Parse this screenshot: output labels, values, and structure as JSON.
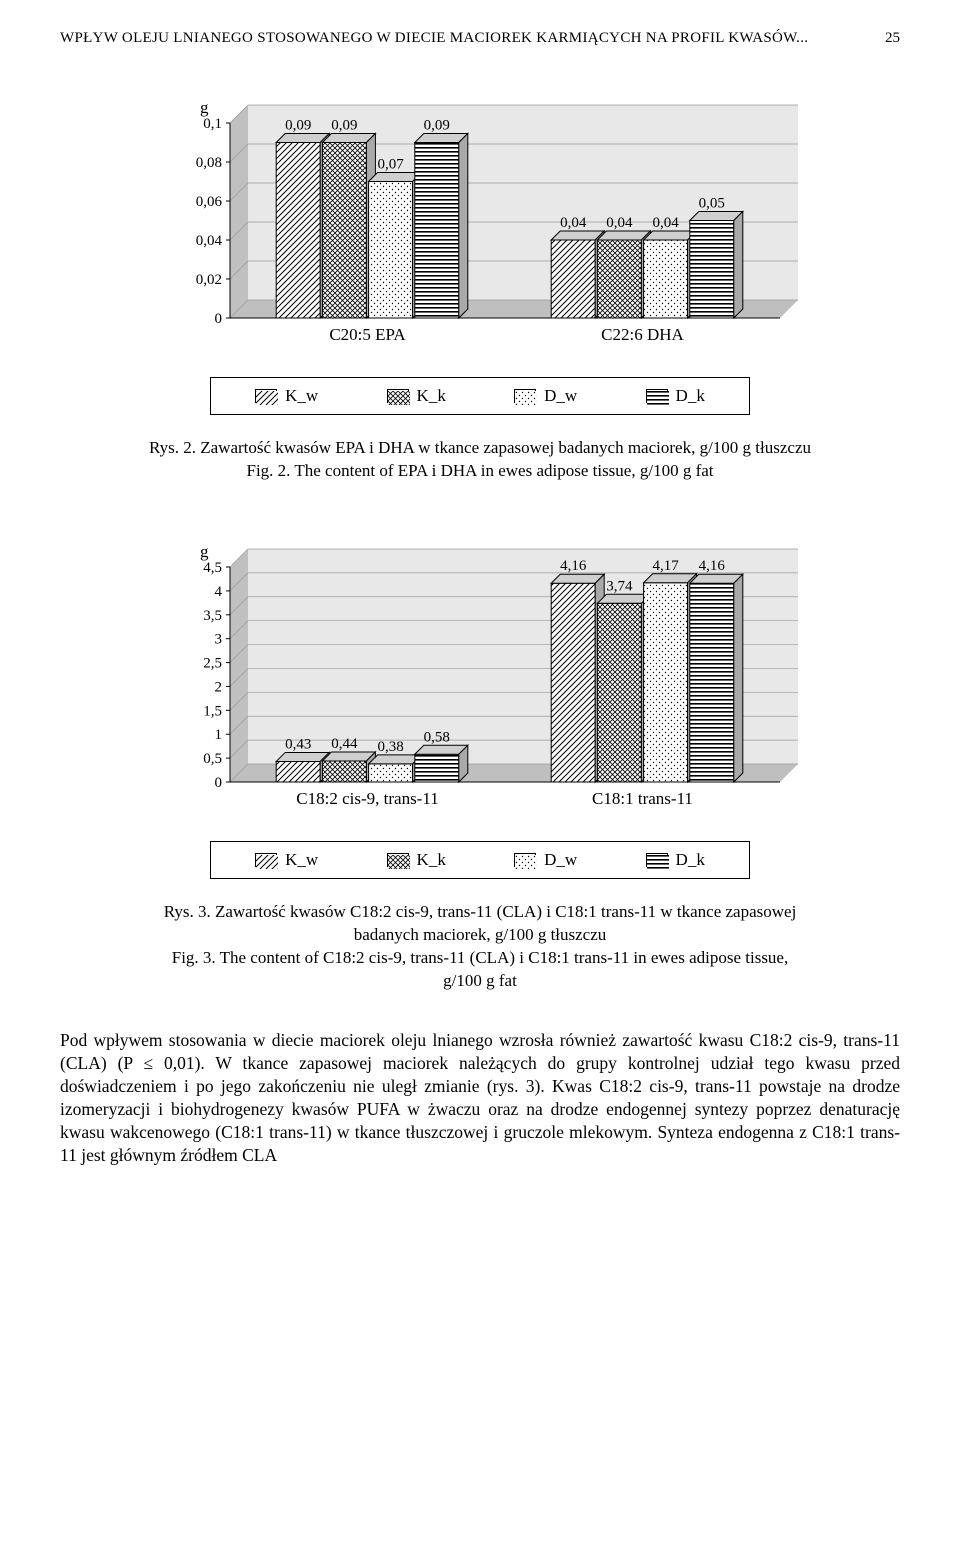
{
  "header": {
    "title_text": "WPŁYW OLEJU LNIANEGO STOSOWANEGO W DIECIE MACIOREK KARMIĄCYCH NA PROFIL KWASÓW...",
    "page_number": "25"
  },
  "patterns": {
    "K_w": "diag-left",
    "K_k": "crosshatch",
    "D_w": "dots",
    "D_k": "hstripe"
  },
  "palette": {
    "bar_stroke": "#000000",
    "top_fill": "#cfcfcf",
    "floor_light": "#dcdcdc",
    "floor_dark": "#bfbfbf",
    "wall_light": "#e8e8e8",
    "wall_dark": "#c0c0c0",
    "axis": "#000000",
    "text": "#000000",
    "bg": "#ffffff"
  },
  "chart1": {
    "y_label_letter": "g",
    "y_ticks": [
      "0,1",
      "0,08",
      "0,06",
      "0,04",
      "0,02",
      "0"
    ],
    "y_max": 0.1,
    "groups": [
      {
        "label": "C20:5 EPA",
        "bars": [
          {
            "series": "K_w",
            "value": 0.09,
            "label": "0,09"
          },
          {
            "series": "K_k",
            "value": 0.09,
            "label": "0,09"
          },
          {
            "series": "D_w",
            "value": 0.07,
            "label": "0,07"
          },
          {
            "series": "D_k",
            "value": 0.09,
            "label": "0,09"
          }
        ]
      },
      {
        "label": "C22:6 DHA",
        "bars": [
          {
            "series": "K_w",
            "value": 0.04,
            "label": "0,04"
          },
          {
            "series": "K_k",
            "value": 0.04,
            "label": "0,04"
          },
          {
            "series": "D_w",
            "value": 0.04,
            "label": "0,04"
          },
          {
            "series": "D_k",
            "value": 0.05,
            "label": "0,05"
          }
        ]
      }
    ]
  },
  "chart2": {
    "y_label_letter": "g",
    "y_ticks": [
      "4,5",
      "4",
      "3,5",
      "3",
      "2,5",
      "2",
      "1,5",
      "1",
      "0,5",
      "0"
    ],
    "y_max": 4.5,
    "groups": [
      {
        "label": "C18:2 cis-9, trans-11",
        "bars": [
          {
            "series": "K_w",
            "value": 0.43,
            "label": "0,43"
          },
          {
            "series": "K_k",
            "value": 0.44,
            "label": "0,44"
          },
          {
            "series": "D_w",
            "value": 0.38,
            "label": "0,38"
          },
          {
            "series": "D_k",
            "value": 0.58,
            "label": "0,58"
          }
        ]
      },
      {
        "label": "C18:1 trans-11",
        "bars": [
          {
            "series": "K_w",
            "value": 4.16,
            "label": "4,16"
          },
          {
            "series": "K_k",
            "value": 3.74,
            "label": "3,74"
          },
          {
            "series": "D_w",
            "value": 4.17,
            "label": "4,17"
          },
          {
            "series": "D_k",
            "value": 4.16,
            "label": "4,16"
          }
        ]
      }
    ]
  },
  "legend": [
    {
      "series": "K_w",
      "label": "K_w"
    },
    {
      "series": "K_k",
      "label": "K_k"
    },
    {
      "series": "D_w",
      "label": "D_w"
    },
    {
      "series": "D_k",
      "label": "D_k"
    }
  ],
  "captions": {
    "fig2_rys": "Rys. 2. Zawartość kwasów EPA i DHA w tkance zapasowej badanych maciorek,  g/100 g tłuszczu",
    "fig2_fig": "Fig. 2. The content of EPA i DHA in ewes adipose tissue, g/100 g fat",
    "fig3_rys_l1": "Rys. 3. Zawartość kwasów C18:2 cis-9, trans-11 (CLA) i C18:1 trans-11 w tkance zapasowej",
    "fig3_rys_l2": "badanych maciorek, g/100 g tłuszczu",
    "fig3_fig_l1": "Fig. 3. The content of C18:2 cis-9, trans-11 (CLA) i C18:1 trans-11 in ewes adipose tissue,",
    "fig3_fig_l2": "g/100 g fat"
  },
  "body_paragraph": "Pod wpływem stosowania w diecie maciorek oleju lnianego wzrosła również zawartość kwasu C18:2 cis-9, trans-11 (CLA) (P ≤ 0,01). W tkance zapasowej maciorek należących do grupy kontrolnej udział tego kwasu przed doświadczeniem i po jego zakończeniu nie uległ zmianie (rys. 3). Kwas C18:2 cis-9, trans-11 powstaje na drodze izomeryzacji i biohydrogenezy kwasów PUFA w żwaczu oraz na drodze endogennej syntezy poprzez denaturację kwasu wakcenowego (C18:1 trans-11) w tkance tłuszczowej i gruczole mlekowym.  Synteza  endogenna  z  C18:1  trans-11  jest  głównym  źródłem  CLA"
}
